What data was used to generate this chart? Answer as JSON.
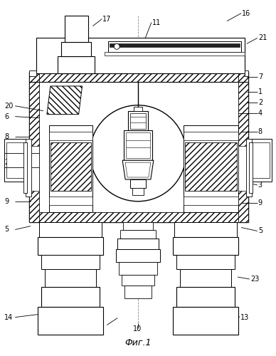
{
  "title": "Фиг.1",
  "bg_color": "#ffffff",
  "line_color": "#000000"
}
